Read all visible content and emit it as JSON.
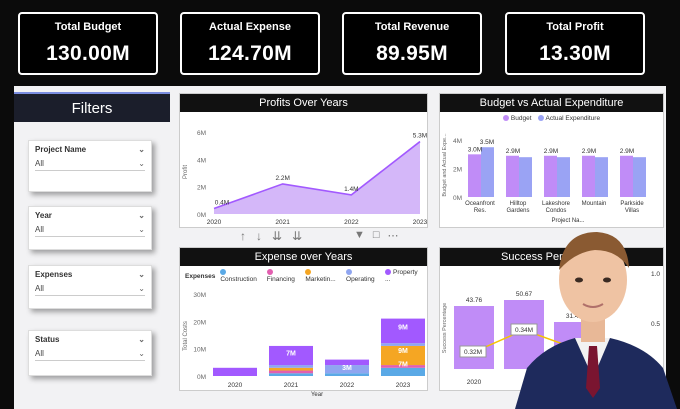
{
  "kpis": [
    {
      "label": "Total Budget",
      "value": "130.00M"
    },
    {
      "label": "Actual Expense",
      "value": "124.70M"
    },
    {
      "label": "Total Revenue",
      "value": "89.95M"
    },
    {
      "label": "Total Profit",
      "value": "13.30M"
    }
  ],
  "filters": {
    "title": "Filters",
    "items": [
      {
        "label": "Project Name",
        "value": "All"
      },
      {
        "label": "Year",
        "value": "All"
      },
      {
        "label": "Expenses",
        "value": "All"
      },
      {
        "label": "Status",
        "value": "All"
      }
    ]
  },
  "profits": {
    "title": "Profits Over Years",
    "ylabel": "Profit",
    "xlabel": "Year",
    "yticks": [
      "0M",
      "2M",
      "4M",
      "6M"
    ],
    "x": [
      "2020",
      "2021",
      "2022",
      "2023"
    ],
    "values": [
      0.4,
      2.2,
      1.4,
      5.3
    ],
    "labels": [
      "0.4M",
      "2.2M",
      "1.4M",
      "5.3M"
    ]
  },
  "budget": {
    "title": "Budget vs Actual Expenditure",
    "legend": [
      "Budget",
      "Actual Expenditure"
    ],
    "ylabel": "Budget and Actual Expe...",
    "xlabel": "Project Na...",
    "yticks": [
      "0M",
      "2M",
      "4M"
    ],
    "categories": [
      "Oceanfront Res.",
      "Hilltop Gardens",
      "Lakeshore Condos",
      "Mountain",
      "Parkside Villas"
    ],
    "budget_values": [
      3.0,
      2.9,
      2.9,
      2.9,
      2.9
    ],
    "actual_values": [
      3.5,
      2.8,
      2.8,
      2.8,
      2.8
    ],
    "budget_labels": [
      "3.0M",
      "2.9M",
      "2.9M",
      "2.9M",
      "2.9M"
    ],
    "actual_label": "3.5M"
  },
  "expense": {
    "title": "Expense over Years",
    "legend_title": "Expenses",
    "legend": [
      "Construction",
      "Financing",
      "Marketin...",
      "Operating",
      "Property ..."
    ],
    "colors": [
      "#5aa9e6",
      "#e25fb0",
      "#f5a623",
      "#8fa5f0",
      "#a259ff"
    ],
    "ylabel": "Total Costs",
    "xlabel": "Year",
    "yticks": [
      "0M",
      "10M",
      "20M",
      "30M"
    ],
    "x": [
      "2020",
      "2021",
      "2022",
      "2023"
    ],
    "series": [
      {
        "name": "Construction",
        "values": [
          0,
          1,
          1,
          3
        ]
      },
      {
        "name": "Financing",
        "values": [
          0,
          1,
          0,
          1
        ]
      },
      {
        "name": "Marketin...",
        "values": [
          0,
          1,
          0,
          7
        ]
      },
      {
        "name": "Operating",
        "values": [
          0,
          1,
          3,
          1
        ]
      },
      {
        "name": "Property ...",
        "values": [
          3,
          7,
          2,
          9
        ]
      }
    ],
    "seg_labels": {
      "2021": "7M",
      "2022": "3M",
      "2023a": "9M",
      "2023b": "9M",
      "2023c": "7M"
    }
  },
  "success": {
    "title": "Success Percentage",
    "ylabel": "Success Percentage",
    "x": [
      "2020"
    ],
    "bar_labels": [
      "43.76",
      "50.67",
      "31.41"
    ],
    "line_labels": [
      "0.32M",
      "0.34M"
    ],
    "right_labels": [
      "1.0",
      "0.5"
    ]
  },
  "toolbar": {
    "arrows": [
      "↑",
      "↓",
      "⇊",
      "⇊"
    ]
  },
  "colors": {
    "accent": "#a259ff",
    "budget": "#c08cf7",
    "actual": "#9aa3f4",
    "area": "#c9a5f8"
  }
}
